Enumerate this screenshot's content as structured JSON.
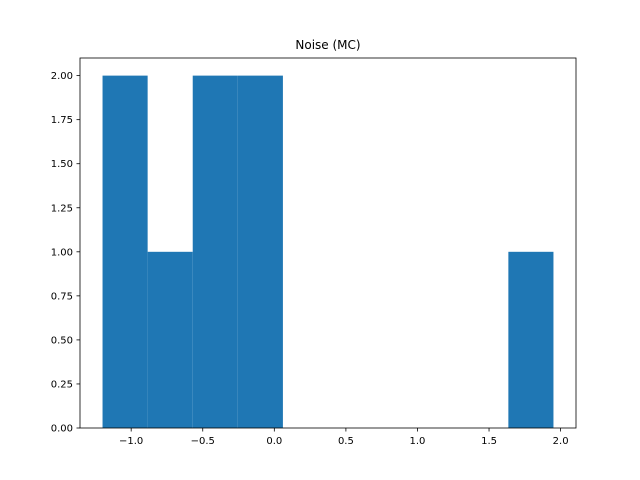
{
  "chart_data": {
    "type": "bar",
    "title": "Noise (MC)",
    "xlabel": "",
    "ylabel": "",
    "bin_edges": [
      -1.2,
      -0.885,
      -0.57,
      -0.255,
      0.06,
      0.375,
      0.69,
      1.005,
      1.32,
      1.635,
      1.95
    ],
    "values": [
      2,
      1,
      2,
      2,
      0,
      0,
      0,
      0,
      0,
      1
    ],
    "xlim": [
      -1.3575,
      2.1075
    ],
    "ylim": [
      0,
      2.1
    ],
    "xticks": [
      -1.0,
      -0.5,
      0.0,
      0.5,
      1.0,
      1.5,
      2.0
    ],
    "xtick_labels": [
      "−1.0",
      "−0.5",
      "0.0",
      "0.5",
      "1.0",
      "1.5",
      "2.0"
    ],
    "yticks": [
      0.0,
      0.25,
      0.5,
      0.75,
      1.0,
      1.25,
      1.5,
      1.75,
      2.0
    ],
    "ytick_labels": [
      "0.00",
      "0.25",
      "0.50",
      "0.75",
      "1.00",
      "1.25",
      "1.50",
      "1.75",
      "2.00"
    ],
    "bar_color": "#1f77b4",
    "grid": false,
    "legend": false
  }
}
